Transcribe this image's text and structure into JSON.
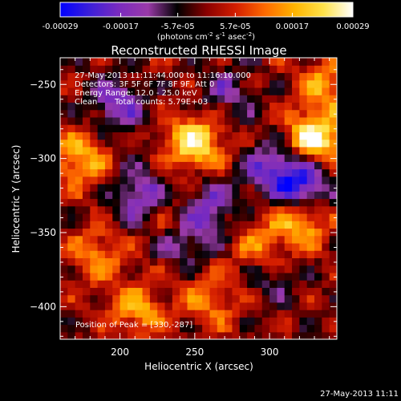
{
  "colorbar": {
    "ticks": [
      {
        "label": "-0.00029",
        "value": -0.00029
      },
      {
        "label": "-0.00017",
        "value": -0.00017
      },
      {
        "label": "-5.7e-05",
        "value": -5.7e-05
      },
      {
        "label": "5.7e-05",
        "value": 5.7e-05
      },
      {
        "label": "0.00017",
        "value": 0.00017
      },
      {
        "label": "0.00029",
        "value": 0.00029
      }
    ],
    "range": [
      -0.00029,
      0.00029
    ],
    "unit_main": "(photons cm",
    "unit_exp1": "-2",
    "unit_mid": " s",
    "unit_exp2": "-1",
    "unit_tail": " asec",
    "unit_exp3": "-2",
    "unit_close": ")",
    "colors": [
      "#0000ff",
      "#3b1fd9",
      "#7a2bbf",
      "#9a3aa8",
      "#000000",
      "#8a0000",
      "#d41e00",
      "#ff6a00",
      "#ffb400",
      "#ffe24a",
      "#ffffff"
    ]
  },
  "chart_data": {
    "type": "heatmap",
    "title": "Reconstructed RHESSI Image",
    "xlabel": "Heliocentric X (arcsec)",
    "ylabel": "Heliocentric Y (arcsec)",
    "xlim": [
      160,
      345
    ],
    "ylim": [
      -422,
      -232
    ],
    "x_ticks": [
      200,
      250,
      300
    ],
    "y_ticks": [
      -250,
      -300,
      -350,
      -400
    ],
    "annotations": [
      "27-May-2013 11:11:44.000 to 11:16:10.000",
      "Detectors: 3F 5F 6F 7F 8F 9F, Att 0",
      "Energy Range: 12.0 - 25.0 keV",
      "Clean",
      "Total counts: 5.79E+03"
    ],
    "peak_label": "Position of Peak = [330,-287]",
    "peak": [
      330,
      -287
    ],
    "hotspots": [
      {
        "x": 250,
        "y": -289,
        "value": 0.00026
      },
      {
        "x": 330,
        "y": -287,
        "value": 0.00029
      },
      {
        "x": 320,
        "y": -341,
        "value": 0.00021
      },
      {
        "x": 173,
        "y": -300,
        "value": 0.00018
      },
      {
        "x": 212,
        "y": -402,
        "value": 0.00016
      },
      {
        "x": 185,
        "y": -365,
        "value": 0.00014
      },
      {
        "x": 338,
        "y": -250,
        "value": 0.00015
      },
      {
        "x": 260,
        "y": -395,
        "value": 0.00013
      },
      {
        "x": 292,
        "y": -360,
        "value": 0.00012
      },
      {
        "x": 232,
        "y": -338,
        "value": 0.00011
      }
    ],
    "coldspots": [
      {
        "x": 198,
        "y": -263,
        "value": -0.00017
      },
      {
        "x": 321,
        "y": -317,
        "value": -0.00029
      },
      {
        "x": 215,
        "y": -326,
        "value": -0.00019
      },
      {
        "x": 260,
        "y": -332,
        "value": -0.00016
      },
      {
        "x": 243,
        "y": -355,
        "value": -0.00013
      },
      {
        "x": 300,
        "y": -305,
        "value": -0.00015
      },
      {
        "x": 270,
        "y": -255,
        "value": -0.00011
      },
      {
        "x": 300,
        "y": -380,
        "value": -9e-05
      }
    ]
  },
  "footer": {
    "timestamp": "27-May-2013 11:11"
  }
}
